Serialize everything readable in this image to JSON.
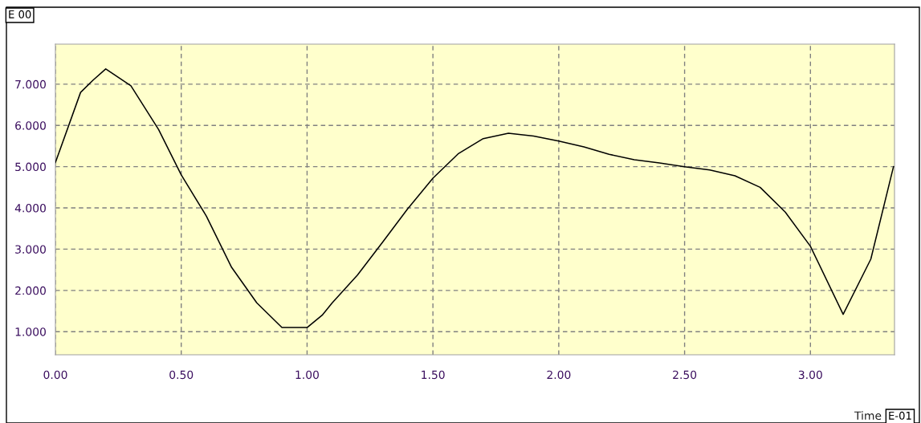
{
  "chart_data": {
    "type": "line",
    "xlabel": "Time",
    "annotations": [
      "E 00",
      "E-01"
    ],
    "series": [
      {
        "color": "#000000",
        "x": [
          0,
          0.1,
          0.15,
          0.2,
          0.3,
          0.41,
          0.5,
          0.6,
          0.7,
          0.8,
          0.9,
          1.0,
          1.06,
          1.1,
          1.2,
          1.3,
          1.4,
          1.5,
          1.6,
          1.7,
          1.8,
          1.9,
          2.0,
          2.1,
          2.2,
          2.3,
          2.4,
          2.5,
          2.6,
          2.7,
          2.8,
          2.9,
          3.0,
          3.13,
          3.24,
          3.33
        ],
        "values": [
          5.1,
          6.8,
          7.1,
          7.37,
          6.96,
          5.9,
          4.8,
          3.8,
          2.56,
          1.7,
          1.1,
          1.1,
          1.4,
          1.7,
          2.37,
          3.17,
          3.98,
          4.72,
          5.31,
          5.68,
          5.81,
          5.74,
          5.62,
          5.48,
          5.3,
          5.17,
          5.09,
          5.0,
          4.92,
          4.78,
          4.5,
          3.9,
          3.07,
          1.42,
          2.76,
          5.0
        ]
      }
    ],
    "xlim": [
      0,
      3.334
    ],
    "ylim": [
      0.44,
      7.97
    ],
    "xticks": [
      {
        "value": 0,
        "label": "0.00"
      },
      {
        "value": 0.5,
        "label": "0.50"
      },
      {
        "value": 1,
        "label": "1.00"
      },
      {
        "value": 1.5,
        "label": "1.50"
      },
      {
        "value": 2,
        "label": "2.00"
      },
      {
        "value": 2.5,
        "label": "2.50"
      },
      {
        "value": 3,
        "label": "3.00"
      }
    ],
    "yticks": [
      {
        "value": 1,
        "label": "1.000"
      },
      {
        "value": 2,
        "label": "2.000"
      },
      {
        "value": 3,
        "label": "3.000"
      },
      {
        "value": 4,
        "label": "4.000"
      },
      {
        "value": 5,
        "label": "5.000"
      },
      {
        "value": 6,
        "label": "6.000"
      },
      {
        "value": 7,
        "label": "7.000"
      }
    ],
    "grid": true,
    "marker": "none",
    "line_style": "solid"
  }
}
